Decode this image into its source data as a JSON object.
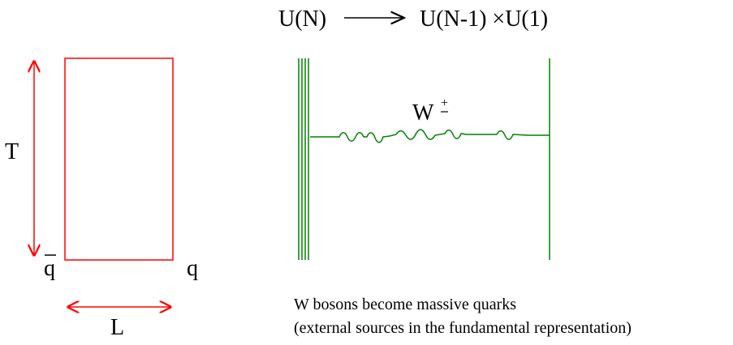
{
  "title": {
    "left": "U(N)",
    "right": "U(N-1) ×U(1)"
  },
  "wilson_loop": {
    "label_T": "T",
    "label_L": "L",
    "label_qbar": "q",
    "label_q": "q",
    "color": "#ff0000"
  },
  "brane_diagram": {
    "boson_label": "W",
    "boson_charge": "+",
    "color": "#008000"
  },
  "caption": {
    "line1": "W bosons become massive quarks",
    "line2": "(external sources in the fundamental representation)"
  }
}
